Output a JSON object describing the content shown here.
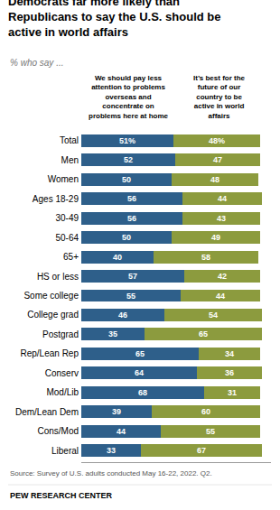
{
  "chart_data": {
    "type": "bar",
    "orientation": "horizontal",
    "stacked": true,
    "data_labels": true,
    "tick_labels": "y",
    "grid": false,
    "title": "Democrats far more likely than\nRepublicans to say the U.S. should be\nactive in world affairs",
    "subtitle": "% who say ...",
    "annotations": [
      "Source: Survey of U.S. adults conducted May 16-22, 2022. Q2.",
      "PEW RESEARCH CENTER"
    ],
    "categories": [
      "Total",
      "Men",
      "Women",
      "Ages 18-29",
      "30-49",
      "50-64",
      "65+",
      "HS or less",
      "Some college",
      "College grad",
      "Postgrad",
      "Rep/Lean Rep",
      "Conserv",
      "Mod/Lib",
      "Dem/Lean Dem",
      "Cons/Mod",
      "Liberal"
    ],
    "series": [
      {
        "name": "We should pay less\nattention to problems\noverseas and\nconcentrate on\nproblems here at home",
        "color": "#2E5F8A",
        "values": [
          51,
          52,
          50,
          56,
          56,
          50,
          40,
          57,
          55,
          46,
          35,
          65,
          64,
          68,
          39,
          44,
          33
        ],
        "value_labels": [
          "51%",
          "52",
          "50",
          "56",
          "56",
          "50",
          "40",
          "57",
          "55",
          "46",
          "35",
          "65",
          "64",
          "68",
          "39",
          "44",
          "33"
        ]
      },
      {
        "name": "It’s best for the\nfuture of our\ncountry to be\nactive in world\naffairs",
        "color": "#8C9B3E",
        "values": [
          48,
          47,
          48,
          44,
          43,
          49,
          58,
          42,
          44,
          54,
          65,
          34,
          36,
          31,
          60,
          55,
          67
        ],
        "value_labels": [
          "48%",
          "47",
          "48",
          "44",
          "43",
          "49",
          "58",
          "42",
          "44",
          "54",
          "65",
          "34",
          "36",
          "31",
          "60",
          "55",
          "67"
        ]
      }
    ],
    "xlim": [
      0,
      105
    ]
  }
}
